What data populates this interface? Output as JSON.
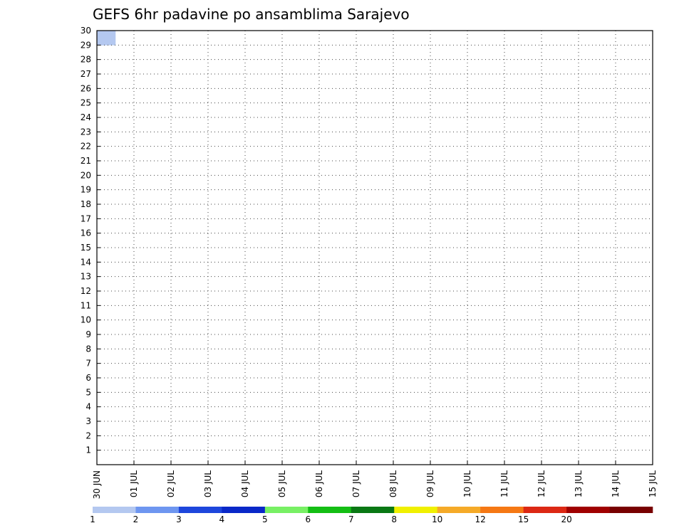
{
  "chart_data": {
    "type": "heatmap",
    "title": "GEFS 6hr padavine po ansamblima Sarajevo",
    "xlabel": "",
    "ylabel": "",
    "x_ticks": [
      "30 JUN",
      "01 JUL",
      "02 JUL",
      "03 JUL",
      "04 JUL",
      "05 JUL",
      "06 JUL",
      "07 JUL",
      "08 JUL",
      "09 JUL",
      "10 JUL",
      "11 JUL",
      "12 JUL",
      "13 JUL",
      "14 JUL",
      "15 JUL"
    ],
    "y_ticks": [
      "1",
      "2",
      "3",
      "4",
      "5",
      "6",
      "7",
      "8",
      "9",
      "10",
      "11",
      "12",
      "13",
      "14",
      "15",
      "16",
      "17",
      "18",
      "19",
      "20",
      "21",
      "22",
      "23",
      "24",
      "25",
      "26",
      "27",
      "28",
      "29",
      "30"
    ],
    "xlim_steps": [
      0,
      60
    ],
    "ylim_members": [
      0,
      30
    ],
    "grid": true,
    "legend_position": "bottom",
    "scale": {
      "labels": [
        "1",
        "2",
        "3",
        "4",
        "5",
        "6",
        "7",
        "8",
        "10",
        "12",
        "15",
        "20"
      ],
      "colors": [
        "#b4c8f0",
        "#6e96f0",
        "#1e46dc",
        "#0a28c8",
        "#78f064",
        "#14be14",
        "#0a7814",
        "#f0f000",
        "#f5aa28",
        "#f57814",
        "#dc2814",
        "#a00000",
        "#780000"
      ]
    },
    "cells": [
      [
        30,
        1,
        0,
        0
      ],
      [
        30,
        0,
        0,
        0
      ],
      [
        30,
        0,
        0,
        0
      ]
    ]
  }
}
